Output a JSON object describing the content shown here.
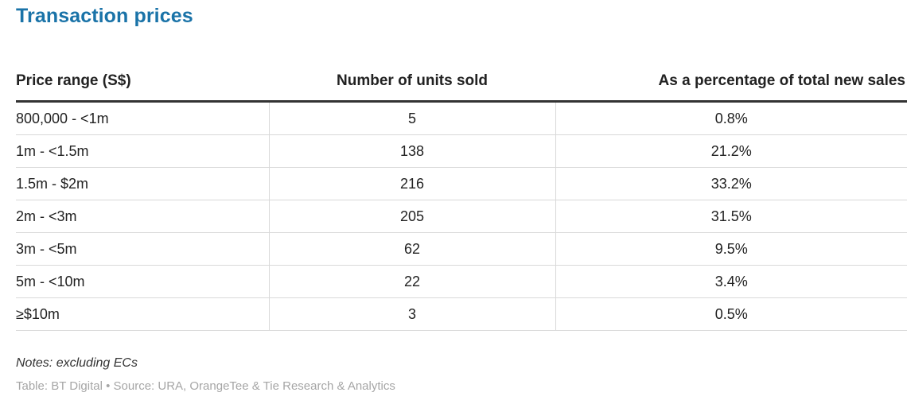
{
  "title": "Transaction prices",
  "chart_data": {
    "type": "table",
    "columns": [
      "Price range (S$)",
      "Number of units sold",
      "As a percentage of total new sales"
    ],
    "rows": [
      [
        "800,000 - <1m",
        "5",
        "0.8%"
      ],
      [
        "1m - <1.5m",
        "138",
        "21.2%"
      ],
      [
        "1.5m - $2m",
        "216",
        "33.2%"
      ],
      [
        "2m - <3m",
        "205",
        "31.5%"
      ],
      [
        "3m - <5m",
        "62",
        "9.5%"
      ],
      [
        "5m - <10m",
        "22",
        "3.4%"
      ],
      [
        "≥$10m",
        "3",
        "0.5%"
      ]
    ]
  },
  "notes": "Notes: excluding ECs",
  "source": "Table: BT Digital • Source: URA, OrangeTee & Tie Research & Analytics"
}
